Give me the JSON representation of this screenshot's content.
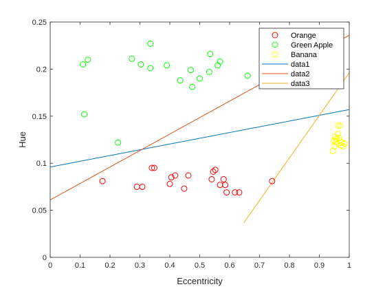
{
  "chart_data": {
    "type": "scatter",
    "xlabel": "Eccentricity",
    "ylabel": "Hue",
    "xlim": [
      0,
      1
    ],
    "ylim": [
      0,
      0.25
    ],
    "x_ticks": [
      "0",
      "0.1",
      "0.2",
      "0.3",
      "0.4",
      "0.5",
      "0.6",
      "0.7",
      "0.8",
      "0.9",
      "1"
    ],
    "y_ticks": [
      "0",
      "0.05",
      "0.1",
      "0.15",
      "0.2",
      "0.25"
    ],
    "grid": false,
    "legend_position": "top-right",
    "scatter_series": [
      {
        "name": "Orange",
        "color": "#ff0000",
        "marker": "circle-open",
        "points": [
          [
            0.175,
            0.081
          ],
          [
            0.29,
            0.075
          ],
          [
            0.308,
            0.075
          ],
          [
            0.34,
            0.095
          ],
          [
            0.348,
            0.095
          ],
          [
            0.4,
            0.078
          ],
          [
            0.405,
            0.085
          ],
          [
            0.418,
            0.087
          ],
          [
            0.448,
            0.073
          ],
          [
            0.462,
            0.087
          ],
          [
            0.54,
            0.083
          ],
          [
            0.545,
            0.091
          ],
          [
            0.552,
            0.093
          ],
          [
            0.568,
            0.077
          ],
          [
            0.58,
            0.083
          ],
          [
            0.585,
            0.077
          ],
          [
            0.59,
            0.069
          ],
          [
            0.618,
            0.069
          ],
          [
            0.632,
            0.069
          ],
          [
            0.742,
            0.081
          ]
        ]
      },
      {
        "name": "Green Apple",
        "color": "#00ff00",
        "marker": "circle-open",
        "points": [
          [
            0.11,
            0.205
          ],
          [
            0.114,
            0.152
          ],
          [
            0.126,
            0.21
          ],
          [
            0.227,
            0.122
          ],
          [
            0.273,
            0.211
          ],
          [
            0.303,
            0.205
          ],
          [
            0.335,
            0.227
          ],
          [
            0.335,
            0.201
          ],
          [
            0.39,
            0.204
          ],
          [
            0.435,
            0.188
          ],
          [
            0.47,
            0.199
          ],
          [
            0.475,
            0.181
          ],
          [
            0.5,
            0.19
          ],
          [
            0.532,
            0.197
          ],
          [
            0.535,
            0.216
          ],
          [
            0.56,
            0.204
          ],
          [
            0.568,
            0.208
          ],
          [
            0.66,
            0.193
          ]
        ]
      },
      {
        "name": "Banana",
        "color": "#ffff00",
        "marker": "circle-open",
        "points": [
          [
            0.945,
            0.113
          ],
          [
            0.948,
            0.124
          ],
          [
            0.95,
            0.118
          ],
          [
            0.952,
            0.128
          ],
          [
            0.955,
            0.123
          ],
          [
            0.957,
            0.126
          ],
          [
            0.96,
            0.121
          ],
          [
            0.962,
            0.131
          ],
          [
            0.963,
            0.14
          ],
          [
            0.965,
            0.127
          ],
          [
            0.968,
            0.124
          ],
          [
            0.97,
            0.14
          ],
          [
            0.972,
            0.119
          ],
          [
            0.975,
            0.122
          ],
          [
            0.98,
            0.118
          ],
          [
            0.985,
            0.121
          ]
        ]
      }
    ],
    "line_series": [
      {
        "name": "data1",
        "color": "#0072bd",
        "points": [
          [
            0,
            0.096
          ],
          [
            1,
            0.157
          ]
        ]
      },
      {
        "name": "data2",
        "color": "#d95319",
        "points": [
          [
            0,
            0.061
          ],
          [
            1,
            0.236
          ]
        ]
      },
      {
        "name": "data3",
        "color": "#edb120",
        "points": [
          [
            0.648,
            0.037
          ],
          [
            1,
            0.196
          ]
        ]
      }
    ]
  }
}
